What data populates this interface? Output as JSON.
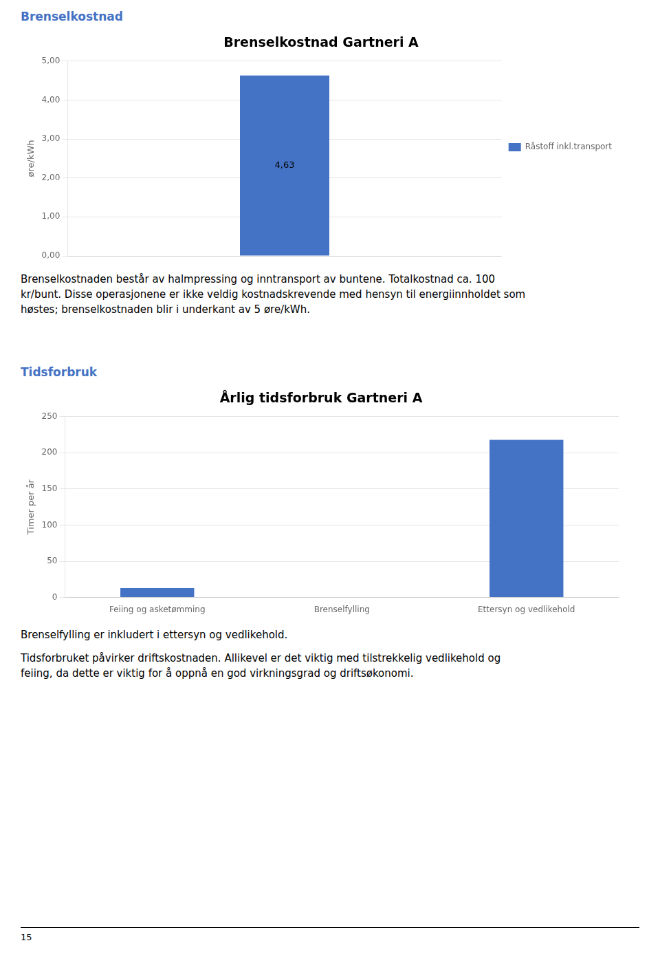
{
  "chart_data": [
    {
      "type": "bar",
      "title": "Brenselkostnad Gartneri A",
      "categories": [
        null
      ],
      "series": [
        {
          "name": "Råstoff inkl.transport",
          "color": "#4472C4",
          "values": [
            4.63
          ],
          "value_labels": [
            "4,63"
          ]
        }
      ],
      "ylabel": "øre/kWh",
      "ylim": [
        0,
        5.0
      ],
      "yticks": [
        {
          "value": 0.0,
          "label": "0,00"
        },
        {
          "value": 1.0,
          "label": "1,00"
        },
        {
          "value": 2.0,
          "label": "2,00"
        },
        {
          "value": 3.0,
          "label": "3,00"
        },
        {
          "value": 4.0,
          "label": "4,00"
        },
        {
          "value": 5.0,
          "label": "5,00"
        }
      ],
      "grid": true,
      "legend": "right",
      "data_labels": true,
      "tick_labels": "y"
    },
    {
      "type": "bar",
      "title": "Årlig tidsforbruk Gartneri A",
      "categories": [
        "Feiing og asketømming",
        "Brenselfylling",
        "Ettersyn og vedlikehold"
      ],
      "series": [
        {
          "name": "Timer per år",
          "color": "#4472C4",
          "values": [
            13,
            0,
            218
          ]
        }
      ],
      "ylabel": "Timer per år",
      "ylim": [
        0,
        250
      ],
      "yticks": [
        0,
        50,
        100,
        150,
        200,
        250
      ],
      "grid": true
    }
  ],
  "headings": [
    {
      "text": "Brenselkostnad",
      "color": "#4472C4"
    },
    {
      "text": "Tidsforbruk",
      "color": "#4472C4"
    }
  ],
  "notes": [
    [
      [
        "Brenselkostnaden består av halmpressing og inntransport av buntene. Totalkostnad ca. 100",
        "kr/bunt. Disse operasjonene er ikke veldig kostnadskrevende med hensyn til energiinnholdet som",
        "høstes; brenselkostnaden blir i underkant av 5 øre/kWh."
      ]
    ],
    [
      [
        "Brenselfylling er inkludert i ettersyn og vedlikehold."
      ],
      [
        "Tidsforbruket påvirker driftskostnaden. Allikevel er det viktig med tilstrekkelig vedlikehold og",
        "feiing, da dette er viktig for å oppnå en god virkningsgrad og driftsøkonomi."
      ]
    ]
  ],
  "page_number": "15"
}
